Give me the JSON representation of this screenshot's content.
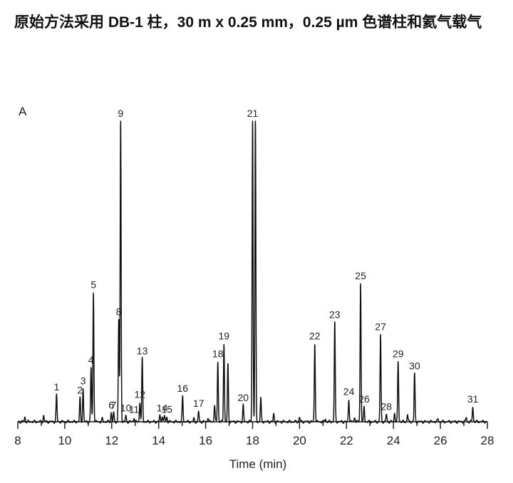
{
  "title": "原始方法采用 DB-1 柱，30 m x 0.25 mm，0.25 µm 色谱柱和氦气载气",
  "chart_data": {
    "type": "line",
    "panel_label": "A",
    "xlabel": "Time (min)",
    "xlim": [
      8,
      28
    ],
    "ylim": [
      0,
      100
    ],
    "xticks": [
      8,
      10,
      12,
      14,
      16,
      18,
      20,
      22,
      24,
      26,
      28
    ],
    "grid": false,
    "legend": "none",
    "line_color": "#111111",
    "peaks": [
      {
        "label": "1",
        "x": 9.65,
        "y": 9.0
      },
      {
        "label": "2",
        "x": 10.65,
        "y": 7.9
      },
      {
        "label": "3",
        "x": 10.78,
        "y": 11.0
      },
      {
        "label": "4",
        "x": 11.12,
        "y": 18.0
      },
      {
        "label": "5",
        "x": 11.22,
        "y": 43.0
      },
      {
        "label": "6",
        "x": 11.98,
        "y": 3.0
      },
      {
        "label": "7",
        "x": 12.08,
        "y": 3.0
      },
      {
        "label": "8",
        "x": 12.3,
        "y": 34.0
      },
      {
        "label": "9",
        "x": 12.38,
        "y": 100
      },
      {
        "label": "10",
        "x": 12.6,
        "y": 2.0
      },
      {
        "label": "11",
        "x": 12.95,
        "y": 1.5
      },
      {
        "label": "12",
        "x": 13.2,
        "y": 6.5
      },
      {
        "label": "13",
        "x": 13.3,
        "y": 21.0
      },
      {
        "label": "14",
        "x": 14.15,
        "y": 2.0
      },
      {
        "label": "15",
        "x": 14.35,
        "y": 1.5
      },
      {
        "label": "16",
        "x": 15.02,
        "y": 8.5
      },
      {
        "label": "17",
        "x": 15.7,
        "y": 3.5
      },
      {
        "label": "18",
        "x": 16.52,
        "y": 20.0
      },
      {
        "label": "19",
        "x": 16.78,
        "y": 26.0
      },
      {
        "label": "20",
        "x": 17.6,
        "y": 5.5
      },
      {
        "label": "21",
        "x": 18.0,
        "y": 100
      },
      {
        "label": "22",
        "x": 20.65,
        "y": 26.0
      },
      {
        "label": "23",
        "x": 21.5,
        "y": 33.0
      },
      {
        "label": "24",
        "x": 22.1,
        "y": 7.5
      },
      {
        "label": "25",
        "x": 22.6,
        "y": 46.0
      },
      {
        "label": "26",
        "x": 22.75,
        "y": 5.0
      },
      {
        "label": "27",
        "x": 23.45,
        "y": 29.0
      },
      {
        "label": "28",
        "x": 23.7,
        "y": 2.5
      },
      {
        "label": "29",
        "x": 24.2,
        "y": 20.0
      },
      {
        "label": "30",
        "x": 24.9,
        "y": 16.0
      },
      {
        "label": "31",
        "x": 27.38,
        "y": 5.0
      }
    ],
    "minor_peaks": [
      {
        "x": 8.3,
        "y": 1.5
      },
      {
        "x": 9.1,
        "y": 2.0
      },
      {
        "x": 11.6,
        "y": 1.0
      },
      {
        "x": 14.05,
        "y": 2.0
      },
      {
        "x": 14.25,
        "y": 2.0
      },
      {
        "x": 15.5,
        "y": 1.0
      },
      {
        "x": 16.1,
        "y": 1.5
      },
      {
        "x": 16.38,
        "y": 5.5
      },
      {
        "x": 16.95,
        "y": 19.0
      },
      {
        "x": 18.12,
        "y": 100
      },
      {
        "x": 18.35,
        "y": 8.0
      },
      {
        "x": 18.9,
        "y": 2.5
      },
      {
        "x": 20.0,
        "y": 1.5
      },
      {
        "x": 21.1,
        "y": 1.0
      },
      {
        "x": 22.35,
        "y": 1.5
      },
      {
        "x": 24.05,
        "y": 3.0
      },
      {
        "x": 24.6,
        "y": 2.5
      },
      {
        "x": 25.9,
        "y": 1.0
      },
      {
        "x": 27.1,
        "y": 1.5
      }
    ]
  }
}
